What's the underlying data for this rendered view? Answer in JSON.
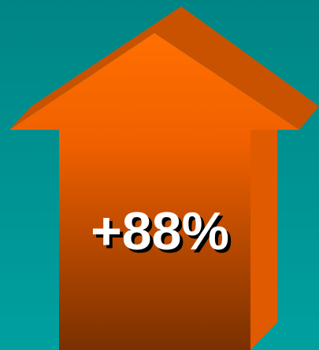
{
  "label": "+88%"
}
